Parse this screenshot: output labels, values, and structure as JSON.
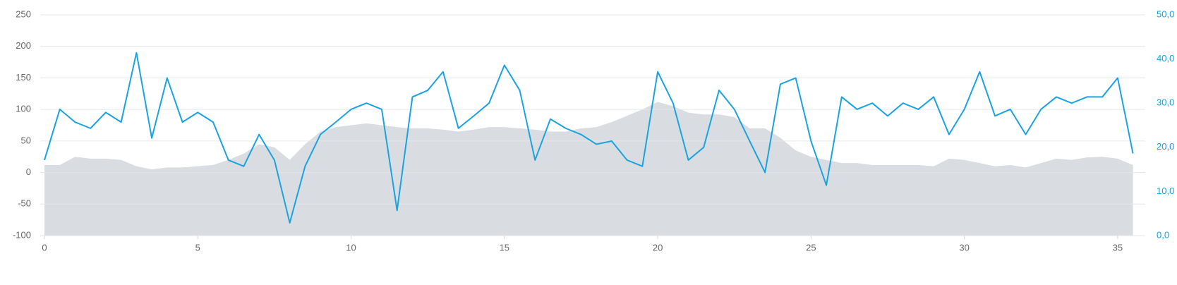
{
  "chart_data": {
    "type": "line",
    "x": [
      0,
      0.5,
      1,
      1.5,
      2,
      2.5,
      3,
      3.5,
      4,
      4.5,
      5,
      5.5,
      6,
      6.5,
      7,
      7.5,
      8,
      8.5,
      9,
      9.5,
      10,
      10.5,
      11,
      11.5,
      12,
      12.5,
      13,
      13.5,
      14,
      14.5,
      15,
      15.5,
      16,
      16.5,
      17,
      17.5,
      18,
      18.5,
      19,
      19.5,
      20,
      20.5,
      21,
      21.5,
      22,
      22.5,
      23,
      23.5,
      24,
      24.5,
      25,
      25.5,
      26,
      26.5,
      27,
      27.5,
      28,
      28.5,
      29,
      29.5,
      30,
      30.5,
      31,
      31.5,
      32,
      32.5,
      33,
      33.5,
      34,
      34.5,
      35,
      35.5
    ],
    "xlim": [
      0,
      35.9
    ],
    "xticks": [
      0,
      5,
      10,
      15,
      20,
      25,
      30,
      35
    ],
    "ylim": [
      -100,
      250
    ],
    "yticks": [
      -100,
      -50,
      0,
      50,
      100,
      150,
      200,
      250
    ],
    "y2lim": [
      0,
      50
    ],
    "y2ticks": [
      {
        "value": 0,
        "label": "0,0"
      },
      {
        "value": 10,
        "label": "10,0"
      },
      {
        "value": 20,
        "label": "20,0"
      },
      {
        "value": 30,
        "label": "30,0"
      },
      {
        "value": 40,
        "label": "40,0"
      },
      {
        "value": 50,
        "label": "50,0"
      }
    ],
    "grid": true,
    "series": [
      {
        "kind": "area",
        "color": "#d9dde2",
        "values": [
          12,
          12,
          25,
          22,
          22,
          20,
          10,
          5,
          8,
          8,
          10,
          12,
          20,
          30,
          45,
          40,
          20,
          45,
          65,
          72,
          75,
          78,
          75,
          72,
          70,
          70,
          68,
          65,
          68,
          72,
          72,
          70,
          68,
          65,
          65,
          70,
          72,
          80,
          90,
          100,
          112,
          105,
          95,
          92,
          92,
          88,
          70,
          70,
          55,
          35,
          25,
          20,
          15,
          15,
          12,
          12,
          12,
          12,
          10,
          22,
          20,
          15,
          10,
          12,
          8,
          15,
          22,
          20,
          24,
          25,
          22,
          12
        ]
      },
      {
        "kind": "line",
        "axis": "y2",
        "color": "#1aa3e0",
        "values": [
          17.1,
          28.6,
          25.7,
          24.3,
          27.9,
          25.7,
          41.4,
          22.1,
          35.7,
          25.7,
          27.9,
          25.7,
          17.1,
          15.7,
          22.9,
          17.1,
          2.9,
          15.7,
          22.9,
          25.7,
          28.6,
          30,
          28.6,
          5.7,
          31.4,
          32.9,
          37.1,
          24.3,
          27.1,
          30,
          38.6,
          32.9,
          17.1,
          26.4,
          24.3,
          22.9,
          20.7,
          21.4,
          17.1,
          15.7,
          37.1,
          30,
          17.1,
          20,
          32.9,
          28.6,
          21.4,
          14.3,
          34.3,
          35.7,
          21.4,
          11.4,
          31.4,
          28.6,
          30,
          27.1,
          30,
          28.6,
          31.4,
          22.9,
          28.6,
          37.1,
          27.1,
          28.6,
          22.9,
          28.6,
          31.4,
          30,
          31.4,
          31.4,
          35.7,
          18.6
        ]
      }
    ]
  }
}
